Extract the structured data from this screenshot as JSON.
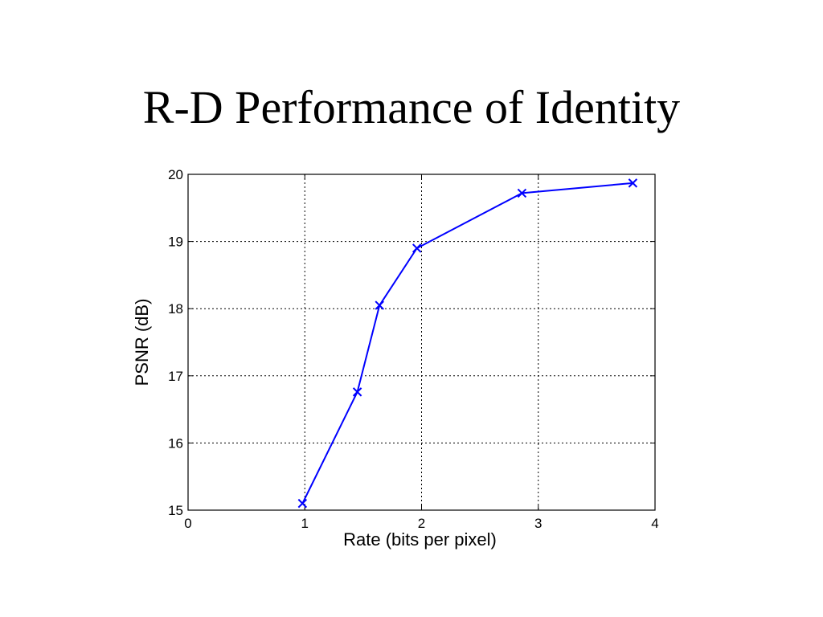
{
  "slide": {
    "title": "R-D Performance of Identity"
  },
  "chart_data": {
    "type": "line",
    "title": "",
    "xlabel": "Rate (bits per pixel)",
    "ylabel": "PSNR (dB)",
    "xlim": [
      0,
      4
    ],
    "ylim": [
      15,
      20
    ],
    "xticks": [
      0,
      1,
      2,
      3,
      4
    ],
    "yticks": [
      15,
      16,
      17,
      18,
      19,
      20
    ],
    "grid": true,
    "series": [
      {
        "color": "#0000ff",
        "marker": "x",
        "x": [
          0.98,
          1.45,
          1.64,
          1.96,
          2.86,
          3.81
        ],
        "y": [
          15.1,
          16.76,
          18.05,
          18.9,
          19.72,
          19.87
        ]
      }
    ]
  }
}
